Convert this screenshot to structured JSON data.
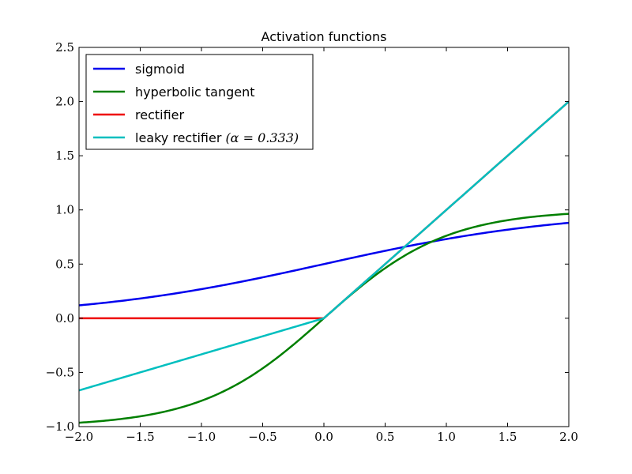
{
  "chart_data": {
    "type": "line",
    "title": "Activation functions",
    "xlabel": "",
    "ylabel": "",
    "xlim": [
      -2.0,
      2.0
    ],
    "ylim": [
      -1.0,
      2.5
    ],
    "x_ticks": [
      -2.0,
      -1.5,
      -1.0,
      -0.5,
      0.0,
      0.5,
      1.0,
      1.5,
      2.0
    ],
    "x_tick_labels": [
      "−2.0",
      "−1.5",
      "−1.0",
      "−0.5",
      "0.0",
      "0.5",
      "1.0",
      "1.5",
      "2.0"
    ],
    "y_ticks": [
      -1.0,
      -0.5,
      0.0,
      0.5,
      1.0,
      1.5,
      2.0,
      2.5
    ],
    "y_tick_labels": [
      "−1.0",
      "−0.5",
      "0.0",
      "0.5",
      "1.0",
      "1.5",
      "2.0",
      "2.5"
    ],
    "grid": false,
    "legend_position": "top-left",
    "series": [
      {
        "name": "sigmoid",
        "color": "#0000ee",
        "x": [
          -2.0,
          -1.5,
          -1.0,
          -0.5,
          0.0,
          0.5,
          1.0,
          1.5,
          2.0
        ],
        "y": [
          0.12,
          0.18,
          0.27,
          0.38,
          0.5,
          0.62,
          0.73,
          0.82,
          0.88
        ]
      },
      {
        "name": "hyperbolic tangent",
        "color": "#007f00",
        "x": [
          -2.0,
          -1.5,
          -1.0,
          -0.5,
          0.0,
          0.5,
          1.0,
          1.5,
          2.0
        ],
        "y": [
          -0.96,
          -0.91,
          -0.76,
          -0.46,
          0.0,
          0.46,
          0.76,
          0.91,
          0.96
        ]
      },
      {
        "name": "rectifier",
        "color": "#ee0000",
        "x": [
          -2.0,
          0.0,
          2.0
        ],
        "y": [
          0.0,
          0.0,
          2.0
        ]
      },
      {
        "name": "leaky rectifier",
        "name_math": "(α = 0.333)",
        "color": "#00bfbf",
        "x": [
          -2.0,
          0.0,
          2.0
        ],
        "y": [
          -0.67,
          0.0,
          2.0
        ]
      }
    ]
  }
}
